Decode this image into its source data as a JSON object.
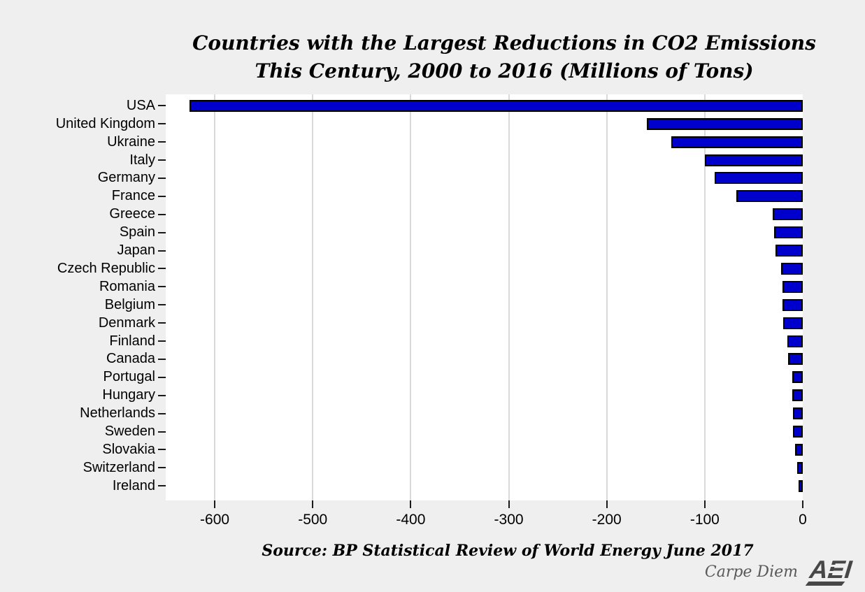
{
  "title": {
    "line1": "Countries with the Largest Reductions in CO2 Emissions",
    "line2": "This Century, 2000 to 2016 (Millions of Tons)"
  },
  "source": "Source: BP Statistical Review of World Energy June 2017",
  "footer": {
    "brand": "Carpe Diem",
    "logo": "AEI"
  },
  "colors": {
    "background": "#efefef",
    "plot_background": "#ffffff",
    "bar_fill": "#0000cc",
    "bar_border": "#000000",
    "gridline": "#d9d9d9",
    "text": "#000000",
    "brand_gray": "#595959",
    "logo_gray": "#474747"
  },
  "chart_data": {
    "type": "bar",
    "orientation": "horizontal",
    "title": "Countries with the Largest Reductions in CO2 Emissions This Century, 2000 to 2016 (Millions of Tons)",
    "xlabel": "",
    "ylabel": "",
    "categories": [
      "USA",
      "United Kingdom",
      "Ukraine",
      "Italy",
      "Germany",
      "France",
      "Greece",
      "Spain",
      "Japan",
      "Czech Republic",
      "Romania",
      "Belgium",
      "Denmark",
      "Finland",
      "Canada",
      "Portugal",
      "Hungary",
      "Netherlands",
      "Sweden",
      "Slovakia",
      "Switzerland",
      "Ireland"
    ],
    "values": [
      -626,
      -159,
      -134,
      -100,
      -90,
      -68,
      -31,
      -29,
      -28,
      -22,
      -21,
      -21,
      -20,
      -16,
      -15,
      -11,
      -11,
      -10,
      -10,
      -8,
      -6,
      -4
    ],
    "xlim": [
      -650,
      0
    ],
    "xticks": [
      -600,
      -500,
      -400,
      -300,
      -200,
      -100,
      0
    ],
    "grid": "vertical-gridlines-on",
    "legend": "none"
  }
}
